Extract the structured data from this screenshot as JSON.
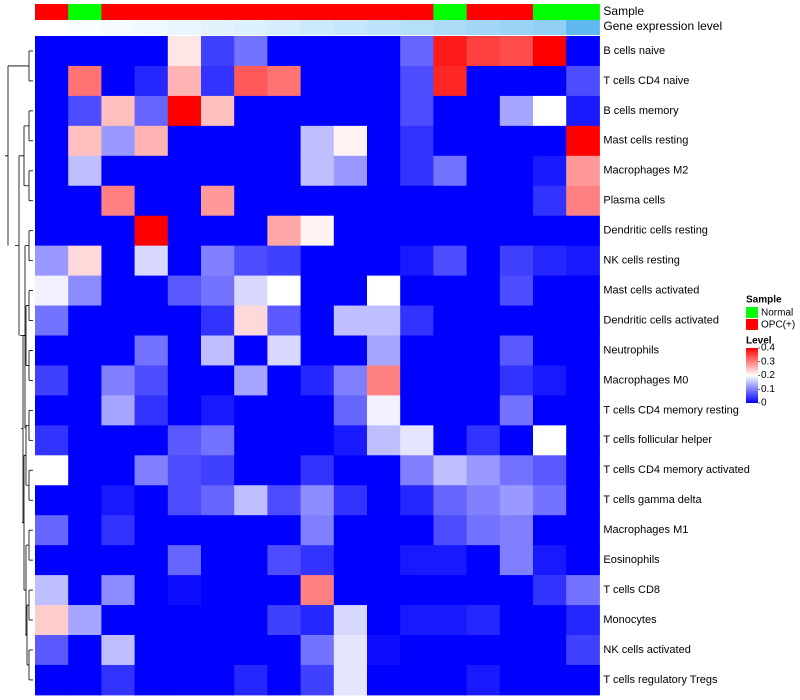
{
  "chart_data": {
    "type": "heatmap",
    "annotation_labels": [
      "Sample",
      "Gene expression level"
    ],
    "sample_groups": [
      "OPC(+)",
      "Normal",
      "OPC(+)",
      "OPC(+)",
      "OPC(+)",
      "OPC(+)",
      "OPC(+)",
      "OPC(+)",
      "OPC(+)",
      "OPC(+)",
      "OPC(+)",
      "OPC(+)",
      "Normal",
      "OPC(+)",
      "OPC(+)",
      "Normal",
      "Normal"
    ],
    "expression_gradient": [
      "#ffffff",
      "#fafdff",
      "#f5fbff",
      "#f0f9ff",
      "#eaf6fe",
      "#e3f3fe",
      "#dcf0fd",
      "#d5edfd",
      "#cdeafc",
      "#c5e6fb",
      "#bde3fa",
      "#b5dff9",
      "#acdbf8",
      "#a3d7f7",
      "#9ad3f6",
      "#91cff5",
      "#5fb8ee"
    ],
    "rows": [
      "B cells naive",
      "T cells CD4 naive",
      "B cells memory",
      "Mast cells resting",
      "Macrophages M2",
      "Plasma cells",
      "Dendritic cells resting",
      "NK cells resting",
      "Mast cells activated",
      "Dendritic cells activated",
      "Neutrophils",
      "Macrophages M0",
      "T cells CD4 memory resting",
      "T cells follicular helper",
      "T cells CD4 memory activated",
      "T cells gamma delta",
      "Macrophages M1",
      "Eosinophils",
      "T cells CD8",
      "Monocytes",
      "NK cells activated",
      "T cells regulatory  Tregs"
    ],
    "values": [
      [
        0,
        0,
        0,
        0,
        0.22,
        0.05,
        0.09,
        0,
        0,
        0,
        0,
        0.08,
        0.38,
        0.35,
        0.34,
        0.4,
        0
      ],
      [
        0,
        0.31,
        0,
        0.03,
        0.26,
        0.04,
        0.33,
        0.31,
        0,
        0,
        0,
        0.06,
        0.37,
        0,
        0,
        0,
        0.06
      ],
      [
        0,
        0.06,
        0.25,
        0.08,
        0.4,
        0.25,
        0,
        0,
        0,
        0,
        0,
        0.06,
        0,
        0,
        0.13,
        0.2,
        0.02
      ],
      [
        0,
        0.25,
        0.12,
        0.26,
        0,
        0,
        0,
        0,
        0.15,
        0.21,
        0,
        0.04,
        0,
        0,
        0,
        0,
        0.4
      ],
      [
        0,
        0.15,
        0,
        0,
        0,
        0,
        0,
        0,
        0.15,
        0.12,
        0,
        0.04,
        0.09,
        0,
        0,
        0.02,
        0.28
      ],
      [
        0,
        0,
        0.3,
        0,
        0,
        0.28,
        0,
        0,
        0,
        0,
        0,
        0,
        0,
        0,
        0,
        0.04,
        0.3
      ],
      [
        0,
        0,
        0,
        0.4,
        0,
        0,
        0,
        0.27,
        0.21,
        0,
        0,
        0,
        0,
        0,
        0,
        0,
        0
      ],
      [
        0.12,
        0.23,
        0,
        0.17,
        0,
        0.1,
        0.06,
        0.05,
        0,
        0,
        0,
        0.02,
        0.06,
        0,
        0.05,
        0.03,
        0.02
      ],
      [
        0.19,
        0.11,
        0,
        0,
        0.07,
        0.09,
        0.17,
        0.2,
        0,
        0,
        0.2,
        0,
        0,
        0,
        0.06,
        0,
        0
      ],
      [
        0.09,
        0,
        0,
        0,
        0,
        0.04,
        0.23,
        0.07,
        0,
        0.15,
        0.15,
        0.04,
        0,
        0,
        0,
        0,
        0
      ],
      [
        0,
        0,
        0,
        0.09,
        0,
        0.15,
        0,
        0.17,
        0,
        0,
        0.13,
        0,
        0,
        0,
        0.07,
        0,
        0
      ],
      [
        0.05,
        0,
        0.1,
        0.06,
        0,
        0,
        0.13,
        0,
        0.03,
        0.1,
        0.3,
        0,
        0,
        0,
        0.04,
        0.02,
        0
      ],
      [
        0,
        0,
        0.13,
        0.04,
        0,
        0.02,
        0,
        0,
        0,
        0.08,
        0.19,
        0,
        0,
        0,
        0.09,
        0,
        0
      ],
      [
        0.04,
        0,
        0,
        0,
        0.07,
        0.09,
        0,
        0,
        0,
        0.02,
        0.15,
        0.18,
        0,
        0.04,
        0,
        0.2,
        0
      ],
      [
        0.2,
        0,
        0,
        0.1,
        0.06,
        0.05,
        0,
        0,
        0.04,
        0,
        0,
        0.1,
        0.15,
        0.12,
        0.09,
        0.07,
        0
      ],
      [
        0,
        0,
        0.02,
        0,
        0.06,
        0.08,
        0.15,
        0.06,
        0.11,
        0.04,
        0,
        0.03,
        0.08,
        0.1,
        0.12,
        0.09,
        0
      ],
      [
        0.08,
        0,
        0.04,
        0,
        0,
        0,
        0,
        0,
        0.1,
        0,
        0,
        0,
        0.06,
        0.09,
        0.1,
        0,
        0
      ],
      [
        0,
        0,
        0,
        0,
        0.08,
        0,
        0,
        0.06,
        0.04,
        0,
        0,
        0.02,
        0.02,
        0,
        0.1,
        0.02,
        0
      ],
      [
        0.15,
        0,
        0.11,
        0,
        0.01,
        0,
        0,
        0,
        0.3,
        0,
        0,
        0,
        0,
        0,
        0,
        0.04,
        0.09
      ],
      [
        0.24,
        0.13,
        0,
        0,
        0,
        0,
        0,
        0.05,
        0.03,
        0.17,
        0,
        0.02,
        0.02,
        0.03,
        0,
        0,
        0.03
      ],
      [
        0.07,
        0,
        0.15,
        0,
        0,
        0,
        0,
        0,
        0.09,
        0.18,
        0.01,
        0,
        0,
        0,
        0,
        0,
        0.05
      ],
      [
        0,
        0,
        0.04,
        0,
        0,
        0,
        0.03,
        0,
        0.05,
        0.18,
        0,
        0,
        0,
        0.02,
        0,
        0,
        0
      ]
    ],
    "legend_sample": {
      "title": "Sample",
      "items": [
        {
          "label": "Normal",
          "color": "#00ff00"
        },
        {
          "label": "OPC(+)",
          "color": "#ff0000"
        }
      ]
    },
    "legend_level": {
      "title": "Level",
      "ticks": [
        "0.4",
        "0.3",
        "0.2",
        "0.1",
        "0"
      ]
    },
    "color_scale": {
      "min": 0,
      "mid": 0.2,
      "max": 0.4,
      "low": "#0000ff",
      "midcolor": "#ffffff",
      "high": "#ff0000"
    },
    "dendrogram": "rows"
  }
}
